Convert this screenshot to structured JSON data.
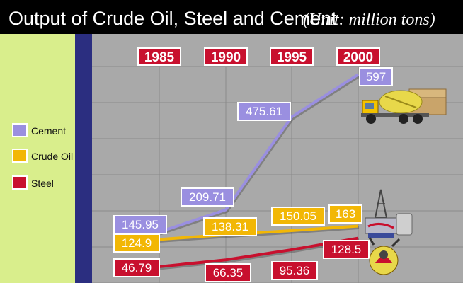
{
  "title": "Output of Crude Oil, Steel and Cement",
  "unit": "(Unit: million tons)",
  "colors": {
    "header_bg": "#000000",
    "legend_bg": "#d9ee8c",
    "band": "#2b2e80",
    "plot_bg": "#a9a9a9",
    "grid": "#8a8a8a",
    "year_box": "#c8102e",
    "cement": "#9a8fe0",
    "crude_oil": "#f2b705",
    "steel": "#c8102e"
  },
  "chart_data": {
    "type": "line",
    "x": [
      "1985",
      "1990",
      "1995",
      "2000"
    ],
    "ylim": [
      0,
      620
    ],
    "grid": true,
    "legend_position": "left",
    "series": [
      {
        "key": "cement",
        "name": "Cement",
        "values": [
          145.95,
          209.71,
          475.61,
          597
        ],
        "labels": [
          "145.95",
          "209.71",
          "475.61",
          "597"
        ]
      },
      {
        "key": "crude_oil",
        "name": "Crude Oil",
        "values": [
          124.9,
          138.31,
          150.05,
          163
        ],
        "labels": [
          "124.9",
          "138.31",
          "150.05",
          "163"
        ]
      },
      {
        "key": "steel",
        "name": "Steel",
        "values": [
          46.79,
          66.35,
          95.36,
          128.5
        ],
        "labels": [
          "46.79",
          "66.35",
          "95.36",
          "128.5"
        ]
      }
    ]
  }
}
